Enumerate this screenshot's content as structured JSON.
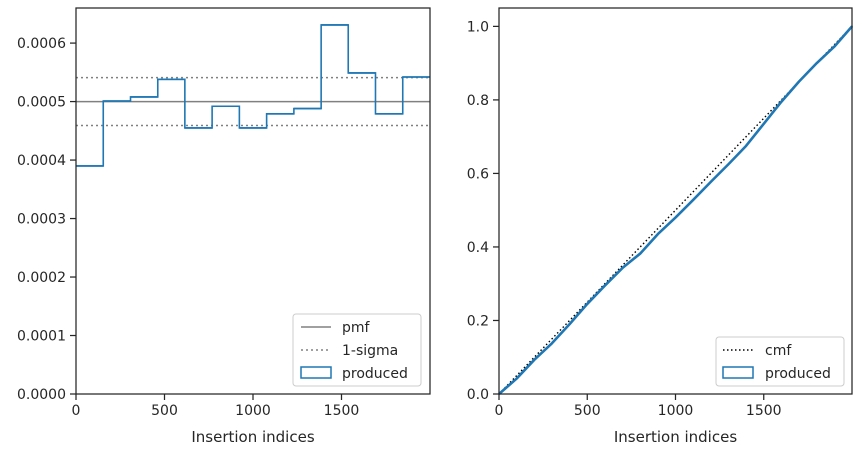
{
  "colors": {
    "produced": "#1f77b4",
    "pmf": "#808080",
    "sigma": "#808080",
    "cmf": "#000000",
    "axes": "#262626"
  },
  "chart_data": [
    {
      "type": "histogram-step",
      "xlabel": "Insertion indices",
      "ylabel": "",
      "xlim": [
        0,
        2000
      ],
      "ylim": [
        0,
        0.00066
      ],
      "xticks": [
        0,
        500,
        1000,
        1500
      ],
      "xtick_labels": [
        "0",
        "500",
        "1000",
        "1500"
      ],
      "yticks": [
        0,
        0.0001,
        0.0002,
        0.0003,
        0.0004,
        0.0005,
        0.0006
      ],
      "ytick_labels": [
        "0.0000",
        "0.0001",
        "0.0002",
        "0.0003",
        "0.0004",
        "0.0005",
        "0.0006"
      ],
      "bin_edges": [
        0,
        154,
        308,
        462,
        615,
        769,
        923,
        1077,
        1231,
        1385,
        1538,
        1692,
        1846,
        2000
      ],
      "produced": [
        0.00039,
        0.000501,
        0.000508,
        0.000538,
        0.000455,
        0.000492,
        0.000455,
        0.000479,
        0.000488,
        0.000631,
        0.000549,
        0.000479,
        0.000542
      ],
      "pmf": 0.0005,
      "sigma_upper": 0.000541,
      "sigma_lower": 0.000459,
      "legend": [
        "pmf",
        "1-sigma",
        "produced"
      ],
      "legend_position": "lower right",
      "grid": false
    },
    {
      "type": "line",
      "xlabel": "Insertion indices",
      "ylabel": "",
      "xlim": [
        0,
        2000
      ],
      "ylim": [
        0,
        1.05
      ],
      "xticks": [
        0,
        500,
        1000,
        1500
      ],
      "xtick_labels": [
        "0",
        "500",
        "1000",
        "1500"
      ],
      "yticks": [
        0,
        0.2,
        0.4,
        0.6,
        0.8,
        1.0
      ],
      "ytick_labels": [
        "0.0",
        "0.2",
        "0.4",
        "0.6",
        "0.8",
        "1.0"
      ],
      "cmf": {
        "x": [
          0,
          2000
        ],
        "y": [
          0,
          1
        ]
      },
      "produced": {
        "x": [
          0,
          100,
          200,
          300,
          400,
          500,
          600,
          700,
          800,
          900,
          1000,
          1100,
          1200,
          1300,
          1400,
          1500,
          1600,
          1700,
          1800,
          1900,
          2000
        ],
        "y": [
          0,
          0.042,
          0.093,
          0.138,
          0.19,
          0.245,
          0.295,
          0.343,
          0.382,
          0.435,
          0.48,
          0.528,
          0.577,
          0.625,
          0.675,
          0.735,
          0.795,
          0.85,
          0.9,
          0.945,
          1.0
        ]
      },
      "legend": [
        "cmf",
        "produced"
      ],
      "legend_position": "lower right",
      "grid": false
    }
  ]
}
